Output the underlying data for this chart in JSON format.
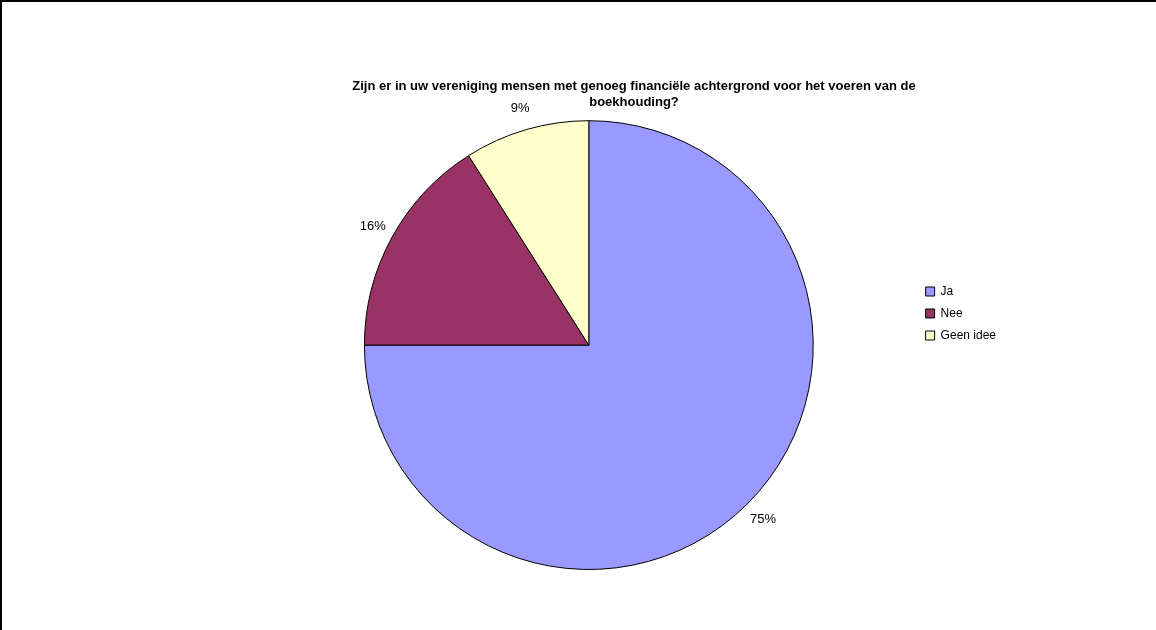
{
  "chart_data": {
    "type": "pie",
    "title": "Zijn er in uw vereniging mensen met genoeg financiële achtergrond voor het voeren van de boekhouding?",
    "categories": [
      "Ja",
      "Nee",
      "Geen idee"
    ],
    "values": [
      75,
      16,
      9
    ],
    "value_labels": [
      "75%",
      "16%",
      "9%"
    ],
    "colors": [
      "#9999ff",
      "#993366",
      "#ffffcc"
    ],
    "legend": "right"
  }
}
